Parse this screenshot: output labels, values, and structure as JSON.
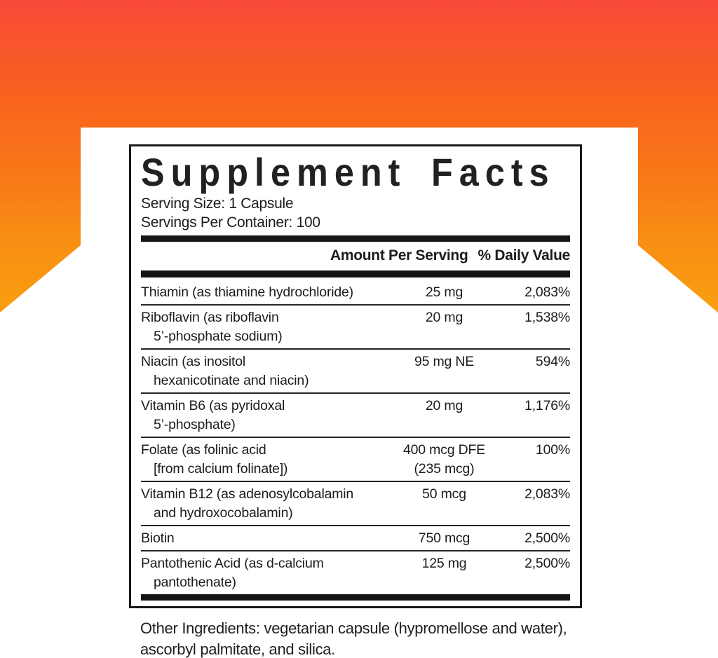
{
  "background": {
    "top_color": "#f94a39",
    "bottom_color": "#f89d10",
    "label_backdrop_color": "#ffffff"
  },
  "label": {
    "title": "Supplement Facts",
    "serving_size": "Serving Size: 1 Capsule",
    "servings_per_container": "Servings Per Container: 100",
    "columns": {
      "amount_label": "Amount Per Serving",
      "dv_label": "% Daily Value"
    },
    "rows": [
      {
        "name1": "Thiamin (as thiamine hydrochloride)",
        "name2": "",
        "amount1": "25 mg",
        "amount2": "",
        "dv": "2,083%"
      },
      {
        "name1": "Riboflavin (as riboflavin",
        "name2": "5’-phosphate sodium)",
        "amount1": "20 mg",
        "amount2": "",
        "dv": "1,538%"
      },
      {
        "name1": "Niacin (as inositol",
        "name2": "hexanicotinate and niacin)",
        "amount1": "95 mg NE",
        "amount2": "",
        "dv": "594%"
      },
      {
        "name1": "Vitamin B6 (as pyridoxal",
        "name2": "5’-phosphate)",
        "amount1": "20 mg",
        "amount2": "",
        "dv": "1,176%"
      },
      {
        "name1": "Folate (as folinic acid",
        "name2": "[from calcium folinate])",
        "amount1": "400 mcg DFE",
        "amount2": "(235 mcg)",
        "dv": "100%"
      },
      {
        "name1": "Vitamin B12 (as adenosylcobalamin",
        "name2": "and hydroxocobalamin)",
        "amount1": "50 mcg",
        "amount2": "",
        "dv": "2,083%"
      },
      {
        "name1": "Biotin",
        "name2": "",
        "amount1": "750 mcg",
        "amount2": "",
        "dv": "2,500%"
      },
      {
        "name1": "Pantothenic Acid (as d-calcium",
        "name2": "pantothenate)",
        "amount1": "125 mg",
        "amount2": "",
        "dv": "2,500%"
      }
    ],
    "footer_line1": "Other Ingredients: vegetarian capsule (hypromellose and water),",
    "footer_line2": "ascorbyl palmitate, and silica."
  }
}
